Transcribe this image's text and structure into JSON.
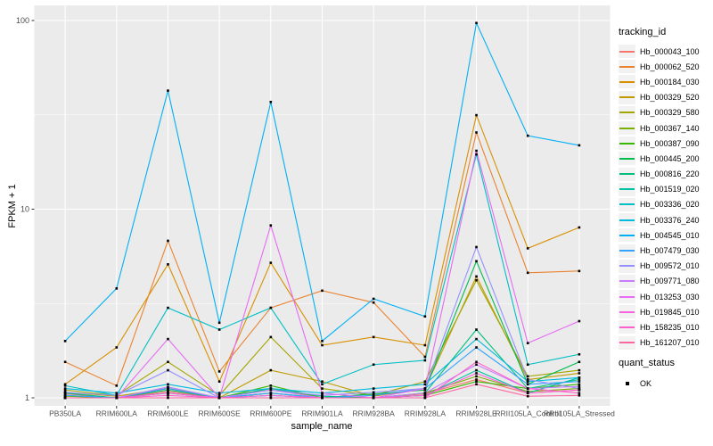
{
  "figure": {
    "y_axis_title": "FPKM + 1",
    "x_axis_title": "sample_name",
    "y_ticks": [
      {
        "label": "1",
        "value": 1
      },
      {
        "label": "10",
        "value": 10
      },
      {
        "label": "100",
        "value": 100
      }
    ],
    "panel_background": "#EBEBEB",
    "grid_color": "#FFFFFF",
    "tick_label_color": "#4D4D4D",
    "tick_mark_color": "#333333",
    "point_color": "#000000",
    "point_shape": "square"
  },
  "legend": {
    "tracking_title": "tracking_id",
    "quant_title": "quant_status",
    "quant_items": [
      {
        "label": "OK"
      }
    ]
  },
  "chart_data": {
    "type": "line",
    "x_scale": "categorical",
    "y_scale": "log10",
    "ylim": [
      1,
      100
    ],
    "grid": true,
    "legend_position": "right",
    "title": "",
    "xlabel": "sample_name",
    "ylabel": "FPKM + 1",
    "categories": [
      "PB350LA",
      "RRIM600LA",
      "RRIM600LE",
      "RRIM600SE",
      "RRIM600PE",
      "RRIM901LA",
      "RRIM928BA",
      "RRIM928LA",
      "RRIM928LE",
      "RRII105LA_Control",
      "RRII105LA_Stressed"
    ],
    "series": [
      {
        "name": "Hb_000043_100",
        "color": "#F8766D",
        "values": [
          1.05,
          1.0,
          1.08,
          1.0,
          1.06,
          1.0,
          1.0,
          1.05,
          1.25,
          1.06,
          1.1
        ]
      },
      {
        "name": "Hb_000062_520",
        "color": "#EA8331",
        "values": [
          1.55,
          1.16,
          6.8,
          1.38,
          3.0,
          3.7,
          3.2,
          1.65,
          25.5,
          4.6,
          4.7
        ]
      },
      {
        "name": "Hb_000184_030",
        "color": "#D89000",
        "values": [
          1.18,
          1.85,
          5.1,
          1.22,
          5.2,
          1.9,
          2.1,
          1.9,
          31.5,
          6.2,
          8.0
        ]
      },
      {
        "name": "Hb_000329_520",
        "color": "#C09B00",
        "values": [
          1.07,
          1.02,
          1.12,
          1.0,
          1.4,
          1.22,
          1.02,
          1.12,
          4.4,
          1.25,
          1.35
        ]
      },
      {
        "name": "Hb_000329_580",
        "color": "#A3A500",
        "values": [
          1.1,
          1.03,
          1.55,
          1.03,
          2.1,
          1.12,
          1.03,
          1.22,
          4.2,
          1.3,
          1.4
        ]
      },
      {
        "name": "Hb_000367_140",
        "color": "#7CAE00",
        "values": [
          1.02,
          1.0,
          1.12,
          1.0,
          1.12,
          1.0,
          1.0,
          1.06,
          1.3,
          1.08,
          1.12
        ]
      },
      {
        "name": "Hb_000387_090",
        "color": "#39B600",
        "values": [
          1.0,
          1.0,
          1.06,
          1.0,
          1.16,
          1.0,
          1.0,
          1.03,
          1.22,
          1.12,
          1.18
        ]
      },
      {
        "name": "Hb_000445_200",
        "color": "#00BB4E",
        "values": [
          1.03,
          1.0,
          1.1,
          1.0,
          1.06,
          1.0,
          1.05,
          1.1,
          5.3,
          1.18,
          1.55
        ]
      },
      {
        "name": "Hb_000816_220",
        "color": "#00BF7D",
        "values": [
          1.06,
          1.0,
          1.14,
          1.0,
          1.12,
          1.02,
          1.0,
          1.06,
          2.3,
          1.12,
          1.25
        ]
      },
      {
        "name": "Hb_001519_020",
        "color": "#00C1A3",
        "values": [
          1.0,
          1.0,
          1.06,
          1.0,
          1.03,
          1.0,
          1.0,
          1.03,
          1.4,
          1.06,
          1.28
        ]
      },
      {
        "name": "Hb_003336_020",
        "color": "#00BFC4",
        "values": [
          1.16,
          1.03,
          3.0,
          2.3,
          3.0,
          1.18,
          1.5,
          1.58,
          19.5,
          1.5,
          1.7
        ]
      },
      {
        "name": "Hb_003376_240",
        "color": "#00BAE0",
        "values": [
          1.12,
          1.06,
          1.18,
          1.06,
          1.12,
          1.06,
          1.12,
          1.18,
          2.05,
          1.22,
          1.28
        ]
      },
      {
        "name": "Hb_004545_010",
        "color": "#00B0F6",
        "values": [
          2.0,
          3.8,
          42.5,
          2.5,
          37.0,
          2.0,
          3.35,
          2.7,
          97.0,
          24.5,
          21.8
        ]
      },
      {
        "name": "Hb_007479_030",
        "color": "#35A2FF",
        "values": [
          1.03,
          1.0,
          1.12,
          1.0,
          1.06,
          1.0,
          1.03,
          1.12,
          1.85,
          1.18,
          1.22
        ]
      },
      {
        "name": "Hb_009572_010",
        "color": "#9590FF",
        "values": [
          1.07,
          1.03,
          1.4,
          1.0,
          1.1,
          1.03,
          1.07,
          1.12,
          6.3,
          1.25,
          1.12
        ]
      },
      {
        "name": "Hb_009771_080",
        "color": "#C77CFF",
        "values": [
          1.0,
          1.0,
          1.14,
          1.0,
          1.1,
          1.0,
          1.0,
          1.06,
          1.5,
          1.12,
          1.15
        ]
      },
      {
        "name": "Hb_013253_030",
        "color": "#E76BF3",
        "values": [
          1.0,
          1.0,
          2.05,
          1.0,
          8.2,
          1.06,
          1.0,
          1.12,
          20.4,
          1.95,
          2.55
        ]
      },
      {
        "name": "Hb_019845_010",
        "color": "#FA62DB",
        "values": [
          1.0,
          1.0,
          1.06,
          1.0,
          1.03,
          1.0,
          1.0,
          1.03,
          1.35,
          1.06,
          1.1
        ]
      },
      {
        "name": "Hb_158235_010",
        "color": "#FF61CC",
        "values": [
          1.0,
          1.0,
          1.03,
          1.0,
          1.0,
          1.0,
          1.0,
          1.0,
          1.55,
          1.12,
          1.06
        ]
      },
      {
        "name": "Hb_161207_010",
        "color": "#FF67A4",
        "values": [
          1.0,
          1.0,
          1.0,
          1.0,
          1.0,
          1.0,
          1.0,
          1.0,
          1.18,
          1.02,
          1.03
        ]
      }
    ]
  }
}
